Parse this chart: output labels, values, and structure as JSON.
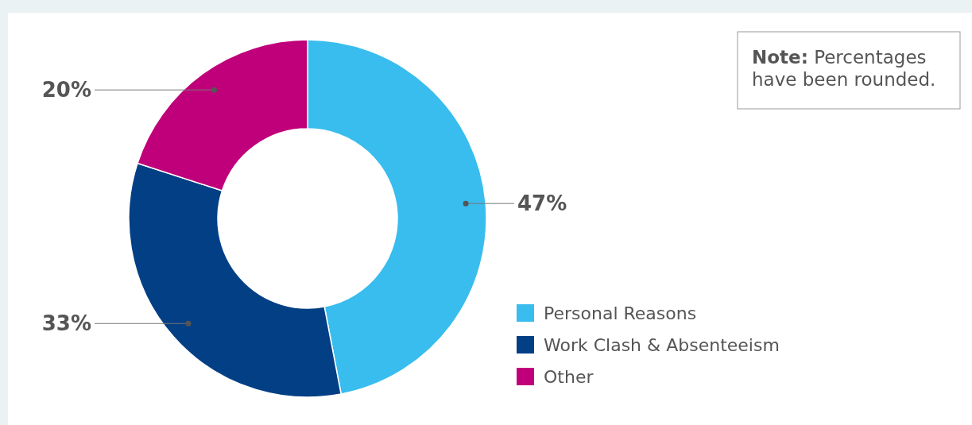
{
  "chart_data": {
    "type": "donut",
    "categories": [
      "Personal Reasons",
      "Work Clash & Absenteeism",
      "Other"
    ],
    "values": [
      47,
      33,
      20
    ],
    "colors": [
      "#38bdee",
      "#033f85",
      "#c0007a"
    ],
    "value_labels": [
      "47%",
      "33%",
      "20%"
    ],
    "legend": "right",
    "annotations": [
      "Note: Percentages have been rounded."
    ]
  }
}
